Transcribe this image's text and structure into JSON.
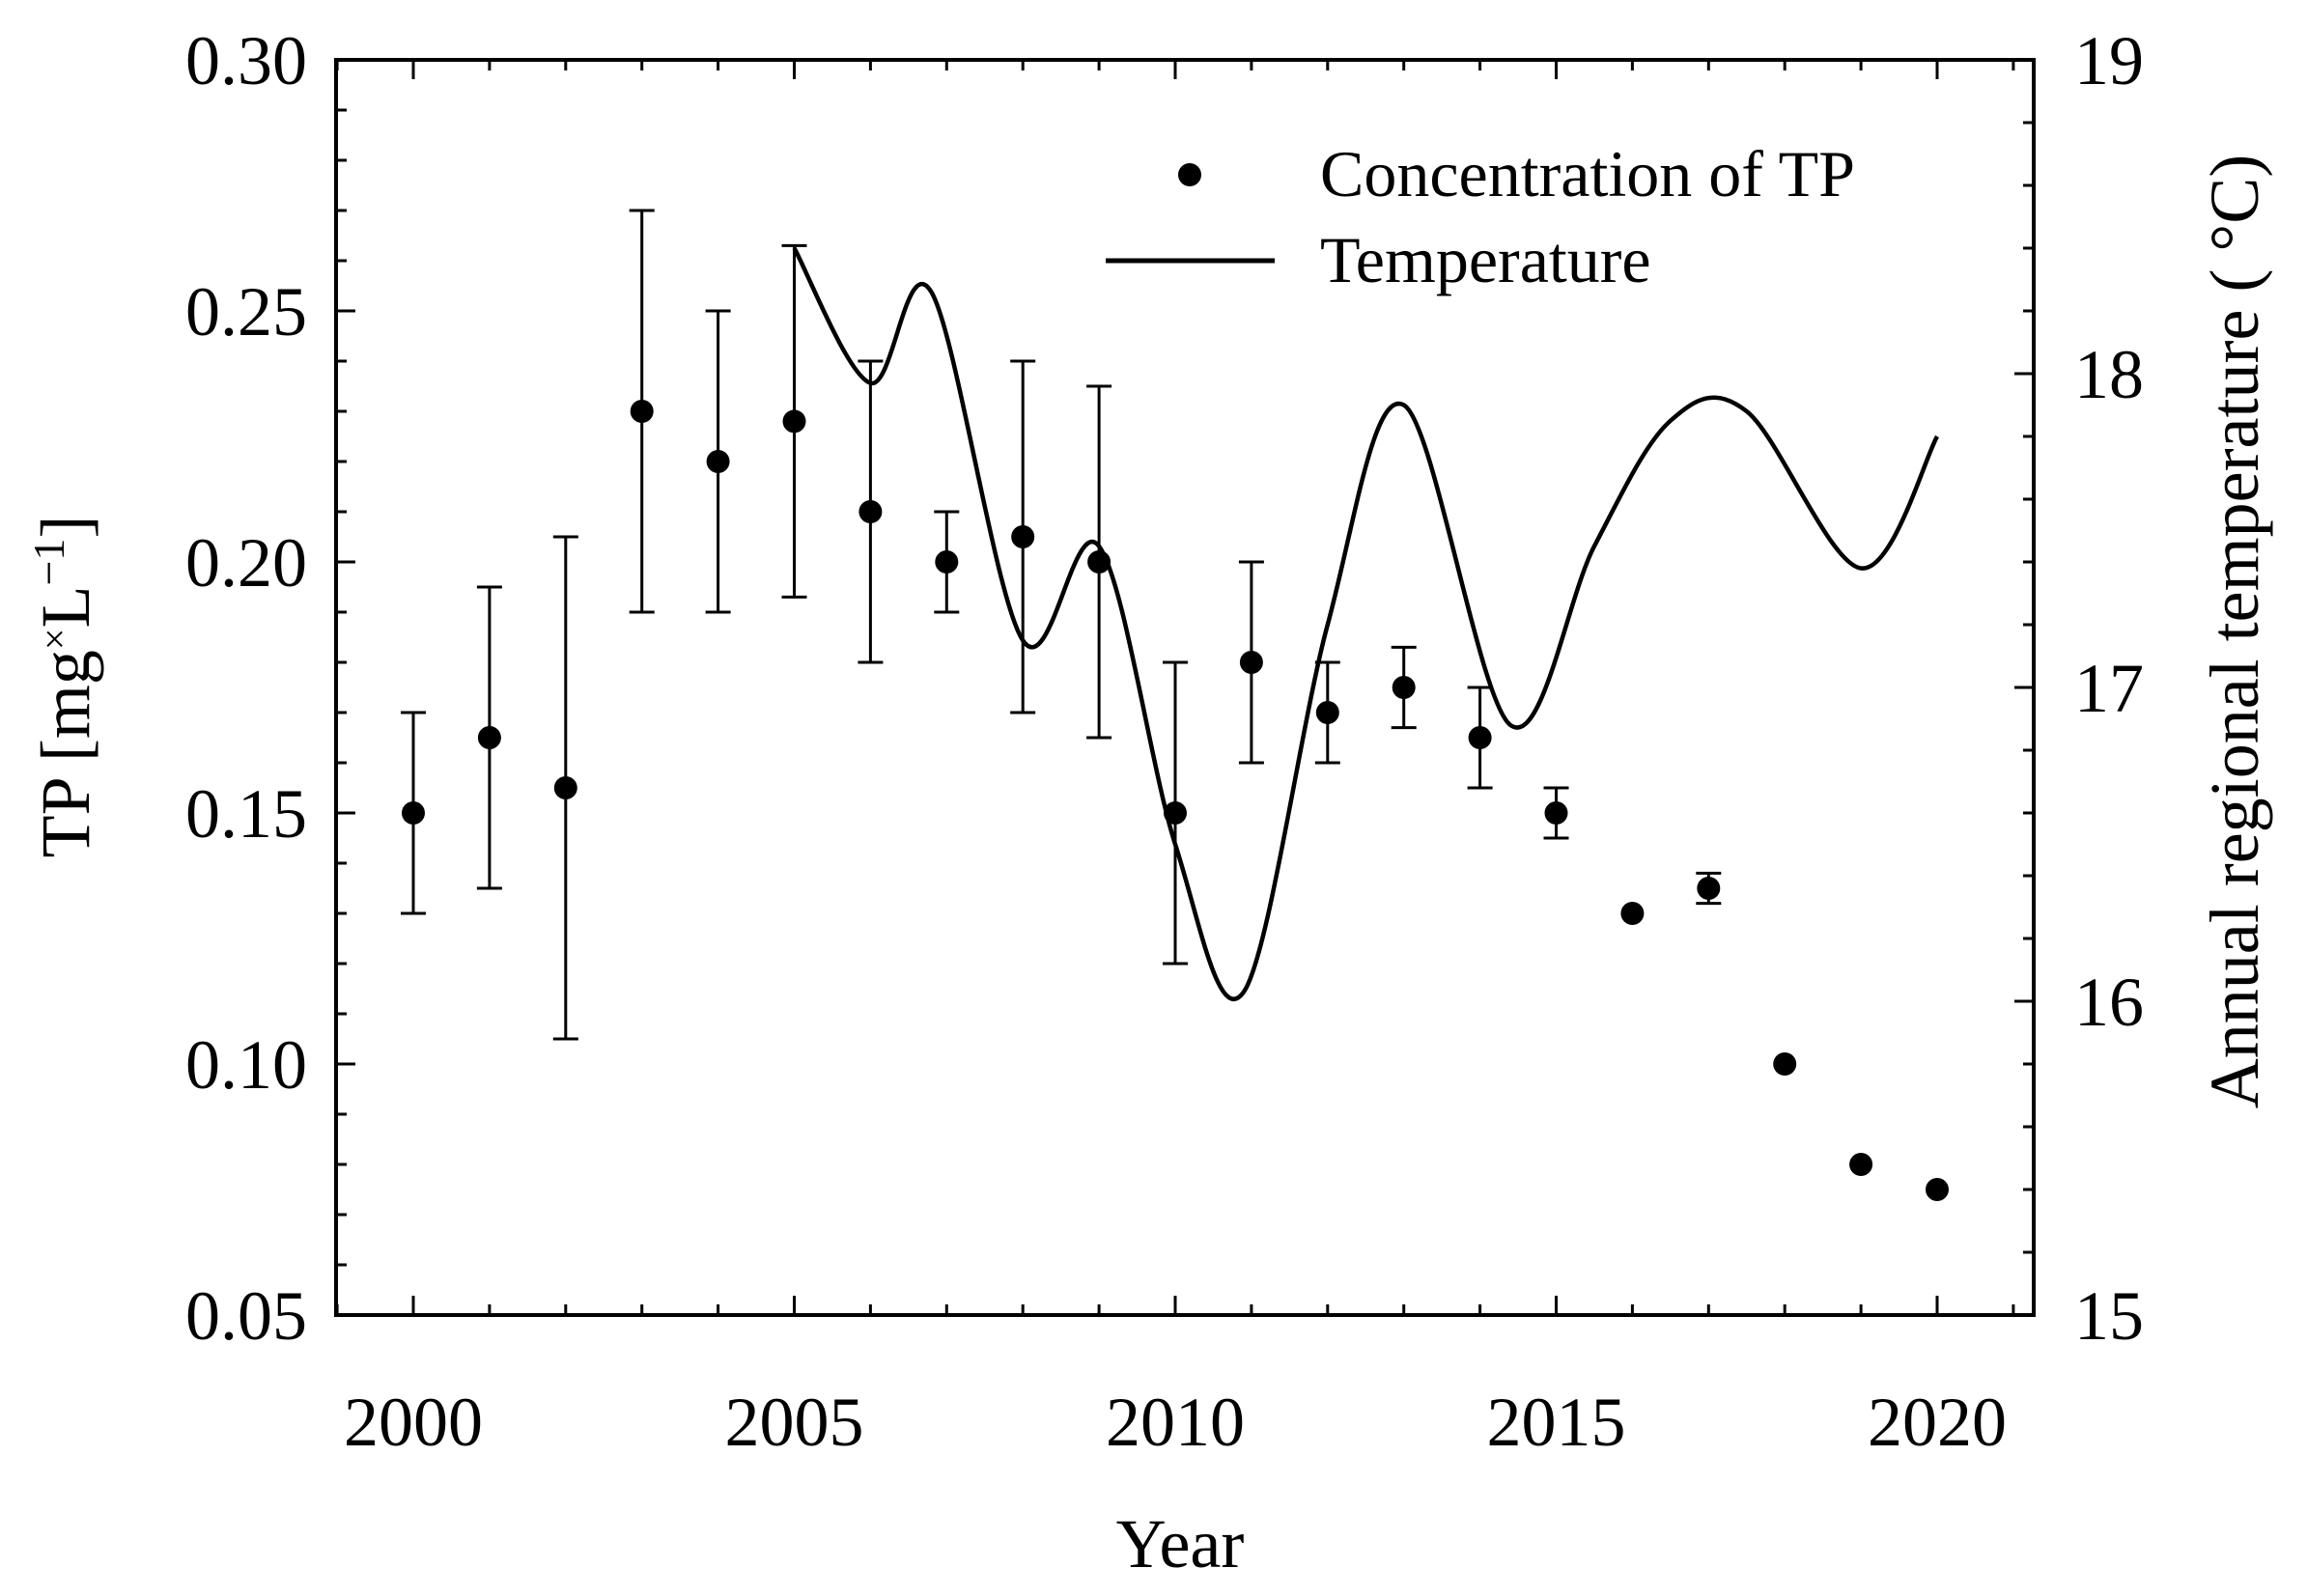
{
  "chart_data": {
    "type": "scatter",
    "title": "",
    "xlabel": "Year",
    "ylabel": "TP [mg×L⁻¹]",
    "ylabel_parts": {
      "base": "TP [mg",
      "times": "×",
      "unit": "L",
      "exp": "−1",
      "close": "]"
    },
    "y2label": "Annual regional temperature ( °C)",
    "xlim": [
      1999,
      2021
    ],
    "ylim": [
      0.05,
      0.3
    ],
    "y2lim": [
      15,
      19
    ],
    "x_ticks": [
      2000,
      2005,
      2010,
      2015,
      2020
    ],
    "y_ticks": [
      "0.05",
      "0.10",
      "0.15",
      "0.20",
      "0.25",
      "0.30"
    ],
    "y2_ticks": [
      "15",
      "16",
      "17",
      "18",
      "19"
    ],
    "legend": {
      "position": "top-right",
      "entries": [
        {
          "label": "Concentration of TP",
          "marker": "dot"
        },
        {
          "label": "Temperature",
          "marker": "line"
        }
      ]
    },
    "series": [
      {
        "name": "Concentration of TP",
        "axis": "left",
        "style": "points-with-errorbars",
        "x": [
          2000,
          2001,
          2002,
          2003,
          2004,
          2005,
          2006,
          2007,
          2008,
          2009,
          2010,
          2011,
          2012,
          2013,
          2014,
          2015,
          2016,
          2017,
          2018,
          2019,
          2020
        ],
        "y": [
          0.15,
          0.165,
          0.155,
          0.23,
          0.22,
          0.228,
          0.21,
          0.2,
          0.205,
          0.2,
          0.15,
          0.18,
          0.17,
          0.175,
          0.165,
          0.15,
          0.13,
          0.135,
          0.1,
          0.08,
          0.075
        ],
        "err_low": [
          0.13,
          0.135,
          0.105,
          0.19,
          0.19,
          0.193,
          0.18,
          0.19,
          0.17,
          0.165,
          0.12,
          0.16,
          0.16,
          0.167,
          0.155,
          0.145,
          0.13,
          0.132,
          0.1,
          0.08,
          0.075
        ],
        "err_high": [
          0.17,
          0.195,
          0.205,
          0.27,
          0.25,
          0.263,
          0.24,
          0.21,
          0.24,
          0.235,
          0.18,
          0.2,
          0.18,
          0.183,
          0.175,
          0.155,
          0.13,
          0.138,
          0.1,
          0.08,
          0.075
        ]
      },
      {
        "name": "Temperature",
        "axis": "right",
        "style": "smooth-line",
        "x": [
          2005,
          2006,
          2006.8,
          2008,
          2009,
          2010,
          2010.9,
          2012,
          2013,
          2014.4,
          2015.5,
          2016.5,
          2017.5,
          2019,
          2020
        ],
        "y": [
          18.4,
          17.97,
          18.26,
          17.15,
          17.45,
          16.5,
          16.03,
          17.2,
          17.9,
          16.88,
          17.45,
          17.85,
          17.88,
          17.38,
          17.8
        ]
      }
    ]
  }
}
